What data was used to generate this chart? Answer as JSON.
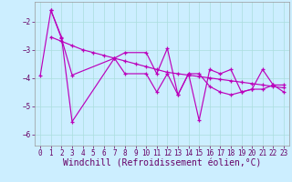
{
  "background_color": "#cceeff",
  "line_color": "#bb00bb",
  "grid_color": "#aadddd",
  "xlabel": "Windchill (Refroidissement éolien,°C)",
  "xlabel_fontsize": 7,
  "tick_fontsize": 5.5,
  "xlim": [
    -0.5,
    23.5
  ],
  "ylim": [
    -6.4,
    -1.3
  ],
  "yticks": [
    -6,
    -5,
    -4,
    -3,
    -2
  ],
  "xticks": [
    0,
    1,
    2,
    3,
    4,
    5,
    6,
    7,
    8,
    9,
    10,
    11,
    12,
    13,
    14,
    15,
    16,
    17,
    18,
    19,
    20,
    21,
    22,
    23
  ],
  "curve1_x": [
    0,
    1,
    2,
    3,
    7,
    8,
    10,
    11,
    12,
    13,
    14,
    15,
    16,
    17,
    18,
    19,
    20,
    21,
    22,
    23
  ],
  "curve1_y": [
    -3.9,
    -1.6,
    -2.6,
    -3.9,
    -3.3,
    -3.85,
    -3.85,
    -4.5,
    -3.85,
    -4.6,
    -3.85,
    -3.85,
    -4.3,
    -4.5,
    -4.6,
    -4.5,
    -4.4,
    -4.4,
    -4.25,
    -4.25
  ],
  "curve2_x": [
    1,
    2,
    3,
    7,
    8,
    10,
    11,
    12,
    13,
    14,
    15,
    16,
    17,
    18,
    19,
    20,
    21,
    22,
    23
  ],
  "curve2_y": [
    -1.6,
    -2.55,
    -5.55,
    -3.3,
    -3.1,
    -3.1,
    -3.85,
    -2.95,
    -4.6,
    -3.85,
    -5.5,
    -3.7,
    -3.85,
    -3.7,
    -4.5,
    -4.4,
    -3.7,
    -4.25,
    -4.5
  ],
  "curve3_x": [
    1,
    2,
    3,
    4,
    5,
    6,
    7,
    8,
    9,
    10,
    11,
    12,
    13,
    14,
    15,
    16,
    17,
    18,
    19,
    20,
    21,
    22,
    23
  ],
  "curve3_y": [
    -2.55,
    -2.7,
    -2.85,
    -3.0,
    -3.1,
    -3.2,
    -3.3,
    -3.4,
    -3.5,
    -3.6,
    -3.7,
    -3.8,
    -3.85,
    -3.9,
    -3.95,
    -4.0,
    -4.05,
    -4.1,
    -4.15,
    -4.2,
    -4.25,
    -4.3,
    -4.35
  ]
}
